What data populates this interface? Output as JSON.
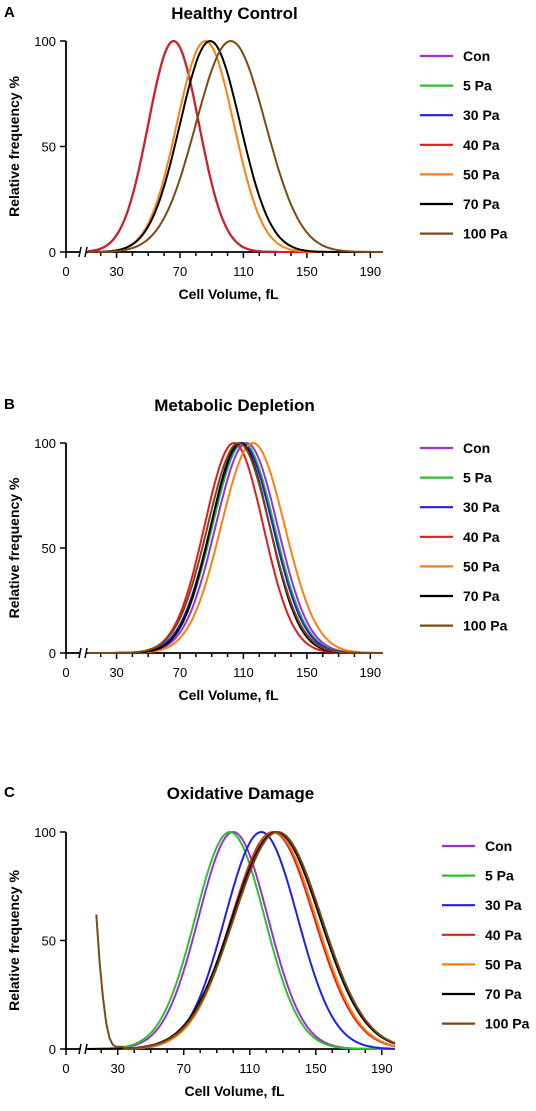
{
  "chart_data": [
    {
      "panel": "A",
      "type": "line",
      "title": "Healthy Control",
      "xlabel": "Cell Volume, fL",
      "ylabel": "Relative frequency %",
      "xticks": [
        0,
        30,
        70,
        110,
        150,
        190
      ],
      "yticks": [
        0,
        50,
        100
      ],
      "xlim": [
        12,
        198
      ],
      "ylim": [
        0,
        100
      ],
      "legend": "right",
      "series": [
        {
          "name": "Con",
          "color": "#9b30d9",
          "peak": 66,
          "sd": 16,
          "values": []
        },
        {
          "name": "5 Pa",
          "color": "#2fbf2f",
          "peak": 66,
          "sd": 16,
          "values": []
        },
        {
          "name": "30 Pa",
          "color": "#1f1fe6",
          "peak": 66,
          "sd": 16,
          "values": []
        },
        {
          "name": "40 Pa",
          "color": "#e31a1c",
          "peak": 66,
          "sd": 16,
          "values": []
        },
        {
          "name": "50 Pa",
          "color": "#ff7f0e",
          "peak": 86,
          "sd": 18,
          "values": []
        },
        {
          "name": "70 Pa",
          "color": "#000000",
          "peak": 89,
          "sd": 19,
          "values": []
        },
        {
          "name": "100 Pa",
          "color": "#7b4a12",
          "peak": 102,
          "sd": 22,
          "values": []
        }
      ]
    },
    {
      "panel": "B",
      "type": "line",
      "title": "Metabolic Depletion",
      "xlabel": "Cell Volume, fL",
      "ylabel": "Relative frequency %",
      "xticks": [
        0,
        30,
        70,
        110,
        150,
        190
      ],
      "yticks": [
        0,
        50,
        100
      ],
      "xlim": [
        12,
        198
      ],
      "ylim": [
        0,
        100
      ],
      "legend": "right",
      "series": [
        {
          "name": "Con",
          "color": "#9b30d9",
          "peak": 112,
          "sd": 19.5,
          "values": []
        },
        {
          "name": "5 Pa",
          "color": "#2fbf2f",
          "peak": 110,
          "sd": 19.5,
          "values": []
        },
        {
          "name": "30 Pa",
          "color": "#1f1fe6",
          "peak": 109,
          "sd": 19.5,
          "values": []
        },
        {
          "name": "40 Pa",
          "color": "#e31a1c",
          "peak": 104,
          "sd": 18.5,
          "values": []
        },
        {
          "name": "50 Pa",
          "color": "#ff7f0e",
          "peak": 116,
          "sd": 20,
          "values": []
        },
        {
          "name": "70 Pa",
          "color": "#000000",
          "peak": 108,
          "sd": 18.5,
          "values": []
        },
        {
          "name": "100 Pa",
          "color": "#7b4a12",
          "peak": 107,
          "sd": 19.5,
          "values": []
        }
      ]
    },
    {
      "panel": "C",
      "type": "line",
      "title": "Oxidative Damage",
      "xlabel": "Cell Volume, fL",
      "ylabel": "Relative frequency %",
      "xticks": [
        0,
        30,
        70,
        110,
        150,
        190
      ],
      "yticks": [
        0,
        50,
        100
      ],
      "xlim": [
        12,
        198
      ],
      "ylim": [
        0,
        100
      ],
      "legend": "right",
      "series": [
        {
          "name": "Con",
          "color": "#9b30d9",
          "peak": 100,
          "sd": 21,
          "values": []
        },
        {
          "name": "5 Pa",
          "color": "#2fbf2f",
          "peak": 98,
          "sd": 21,
          "values": []
        },
        {
          "name": "30 Pa",
          "color": "#1f1fe6",
          "peak": 117,
          "sd": 22,
          "values": []
        },
        {
          "name": "40 Pa",
          "color": "#e31a1c",
          "peak": 124,
          "sd": 25,
          "values": []
        },
        {
          "name": "50 Pa",
          "color": "#ff7f0e",
          "peak": 125,
          "sd": 25,
          "values": []
        },
        {
          "name": "70 Pa",
          "color": "#000000",
          "peak": 126,
          "sd": 26.5,
          "values": []
        },
        {
          "name": "100 Pa",
          "color": "#7b4a12",
          "peak": 127,
          "sd": 26.5,
          "values": [
            [
              17,
              62
            ],
            [
              19,
              40
            ],
            [
              21,
              24
            ],
            [
              23,
              12
            ],
            [
              25,
              5
            ],
            [
              27,
              2
            ],
            [
              29,
              1
            ],
            [
              33,
              1
            ]
          ]
        }
      ]
    }
  ]
}
